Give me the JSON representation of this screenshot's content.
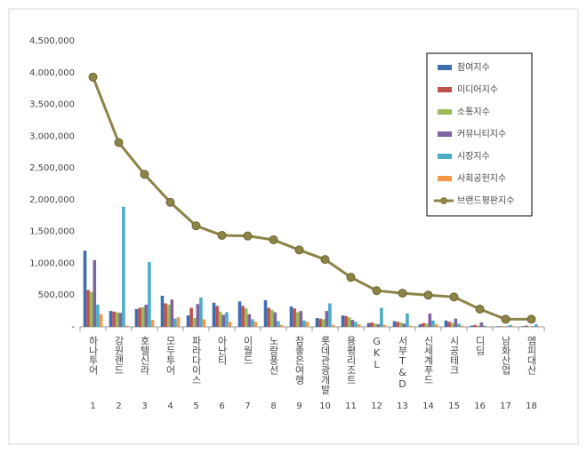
{
  "chart_data": {
    "type": "bar",
    "categories": [
      "하나투어",
      "강원랜드",
      "호텔신라",
      "모두투어",
      "파라다이스",
      "아난티",
      "이월드",
      "노랑풍선",
      "참좋은여행",
      "롯데관광개발",
      "용평리조트",
      "GKL",
      "서부T&D",
      "신세계푸드",
      "시공테크",
      "디딤",
      "남화산업",
      "엠피대산"
    ],
    "ranks": [
      1,
      2,
      3,
      4,
      5,
      6,
      7,
      8,
      9,
      10,
      11,
      12,
      13,
      14,
      15,
      16,
      17,
      18
    ],
    "ylim": [
      0,
      4500000
    ],
    "yticks": [
      {
        "value": 0,
        "label": "-"
      },
      {
        "value": 500000,
        "label": "500,000"
      },
      {
        "value": 1000000,
        "label": "1,000,000"
      },
      {
        "value": 1500000,
        "label": "1,500,000"
      },
      {
        "value": 2000000,
        "label": "2,000,000"
      },
      {
        "value": 2500000,
        "label": "2,500,000"
      },
      {
        "value": 3000000,
        "label": "3,000,000"
      },
      {
        "value": 3500000,
        "label": "3,500,000"
      },
      {
        "value": 4000000,
        "label": "4,000,000"
      },
      {
        "value": 4500000,
        "label": "4,500,000"
      }
    ],
    "grid": false,
    "legend": "upper right",
    "series": [
      {
        "name": "참여지수",
        "color": "#3d6fb0",
        "values": [
          1200000,
          250000,
          280000,
          490000,
          180000,
          380000,
          400000,
          420000,
          320000,
          140000,
          180000,
          60000,
          90000,
          40000,
          100000,
          20000,
          10000,
          10000
        ]
      },
      {
        "name": "미디어지수",
        "color": "#c0504d",
        "values": [
          580000,
          240000,
          300000,
          370000,
          300000,
          330000,
          330000,
          300000,
          290000,
          130000,
          170000,
          70000,
          80000,
          60000,
          80000,
          30000,
          10000,
          20000
        ]
      },
      {
        "name": "소통지수",
        "color": "#9bbb59",
        "values": [
          550000,
          230000,
          310000,
          350000,
          140000,
          240000,
          290000,
          270000,
          230000,
          120000,
          150000,
          50000,
          70000,
          50000,
          60000,
          20000,
          10000,
          10000
        ]
      },
      {
        "name": "커뮤니티지수",
        "color": "#8064a2",
        "values": [
          1050000,
          220000,
          350000,
          430000,
          360000,
          190000,
          200000,
          230000,
          250000,
          250000,
          110000,
          40000,
          50000,
          210000,
          130000,
          70000,
          10000,
          10000
        ]
      },
      {
        "name": "시장지수",
        "color": "#4bacc6",
        "values": [
          350000,
          1890000,
          1020000,
          130000,
          460000,
          230000,
          120000,
          90000,
          100000,
          370000,
          80000,
          300000,
          210000,
          100000,
          50000,
          20000,
          30000,
          40000
        ]
      },
      {
        "name": "사회공헌지수",
        "color": "#f79646",
        "values": [
          200000,
          20000,
          110000,
          150000,
          120000,
          80000,
          80000,
          30000,
          80000,
          30000,
          40000,
          30000,
          20000,
          40000,
          20000,
          10000,
          10000,
          10000
        ]
      },
      {
        "name": "브랜드평판지수",
        "color": "#8c8447",
        "type": "line",
        "values": [
          3930000,
          2900000,
          2400000,
          1960000,
          1590000,
          1440000,
          1430000,
          1370000,
          1210000,
          1060000,
          780000,
          570000,
          530000,
          500000,
          470000,
          280000,
          120000,
          120000
        ]
      }
    ]
  }
}
